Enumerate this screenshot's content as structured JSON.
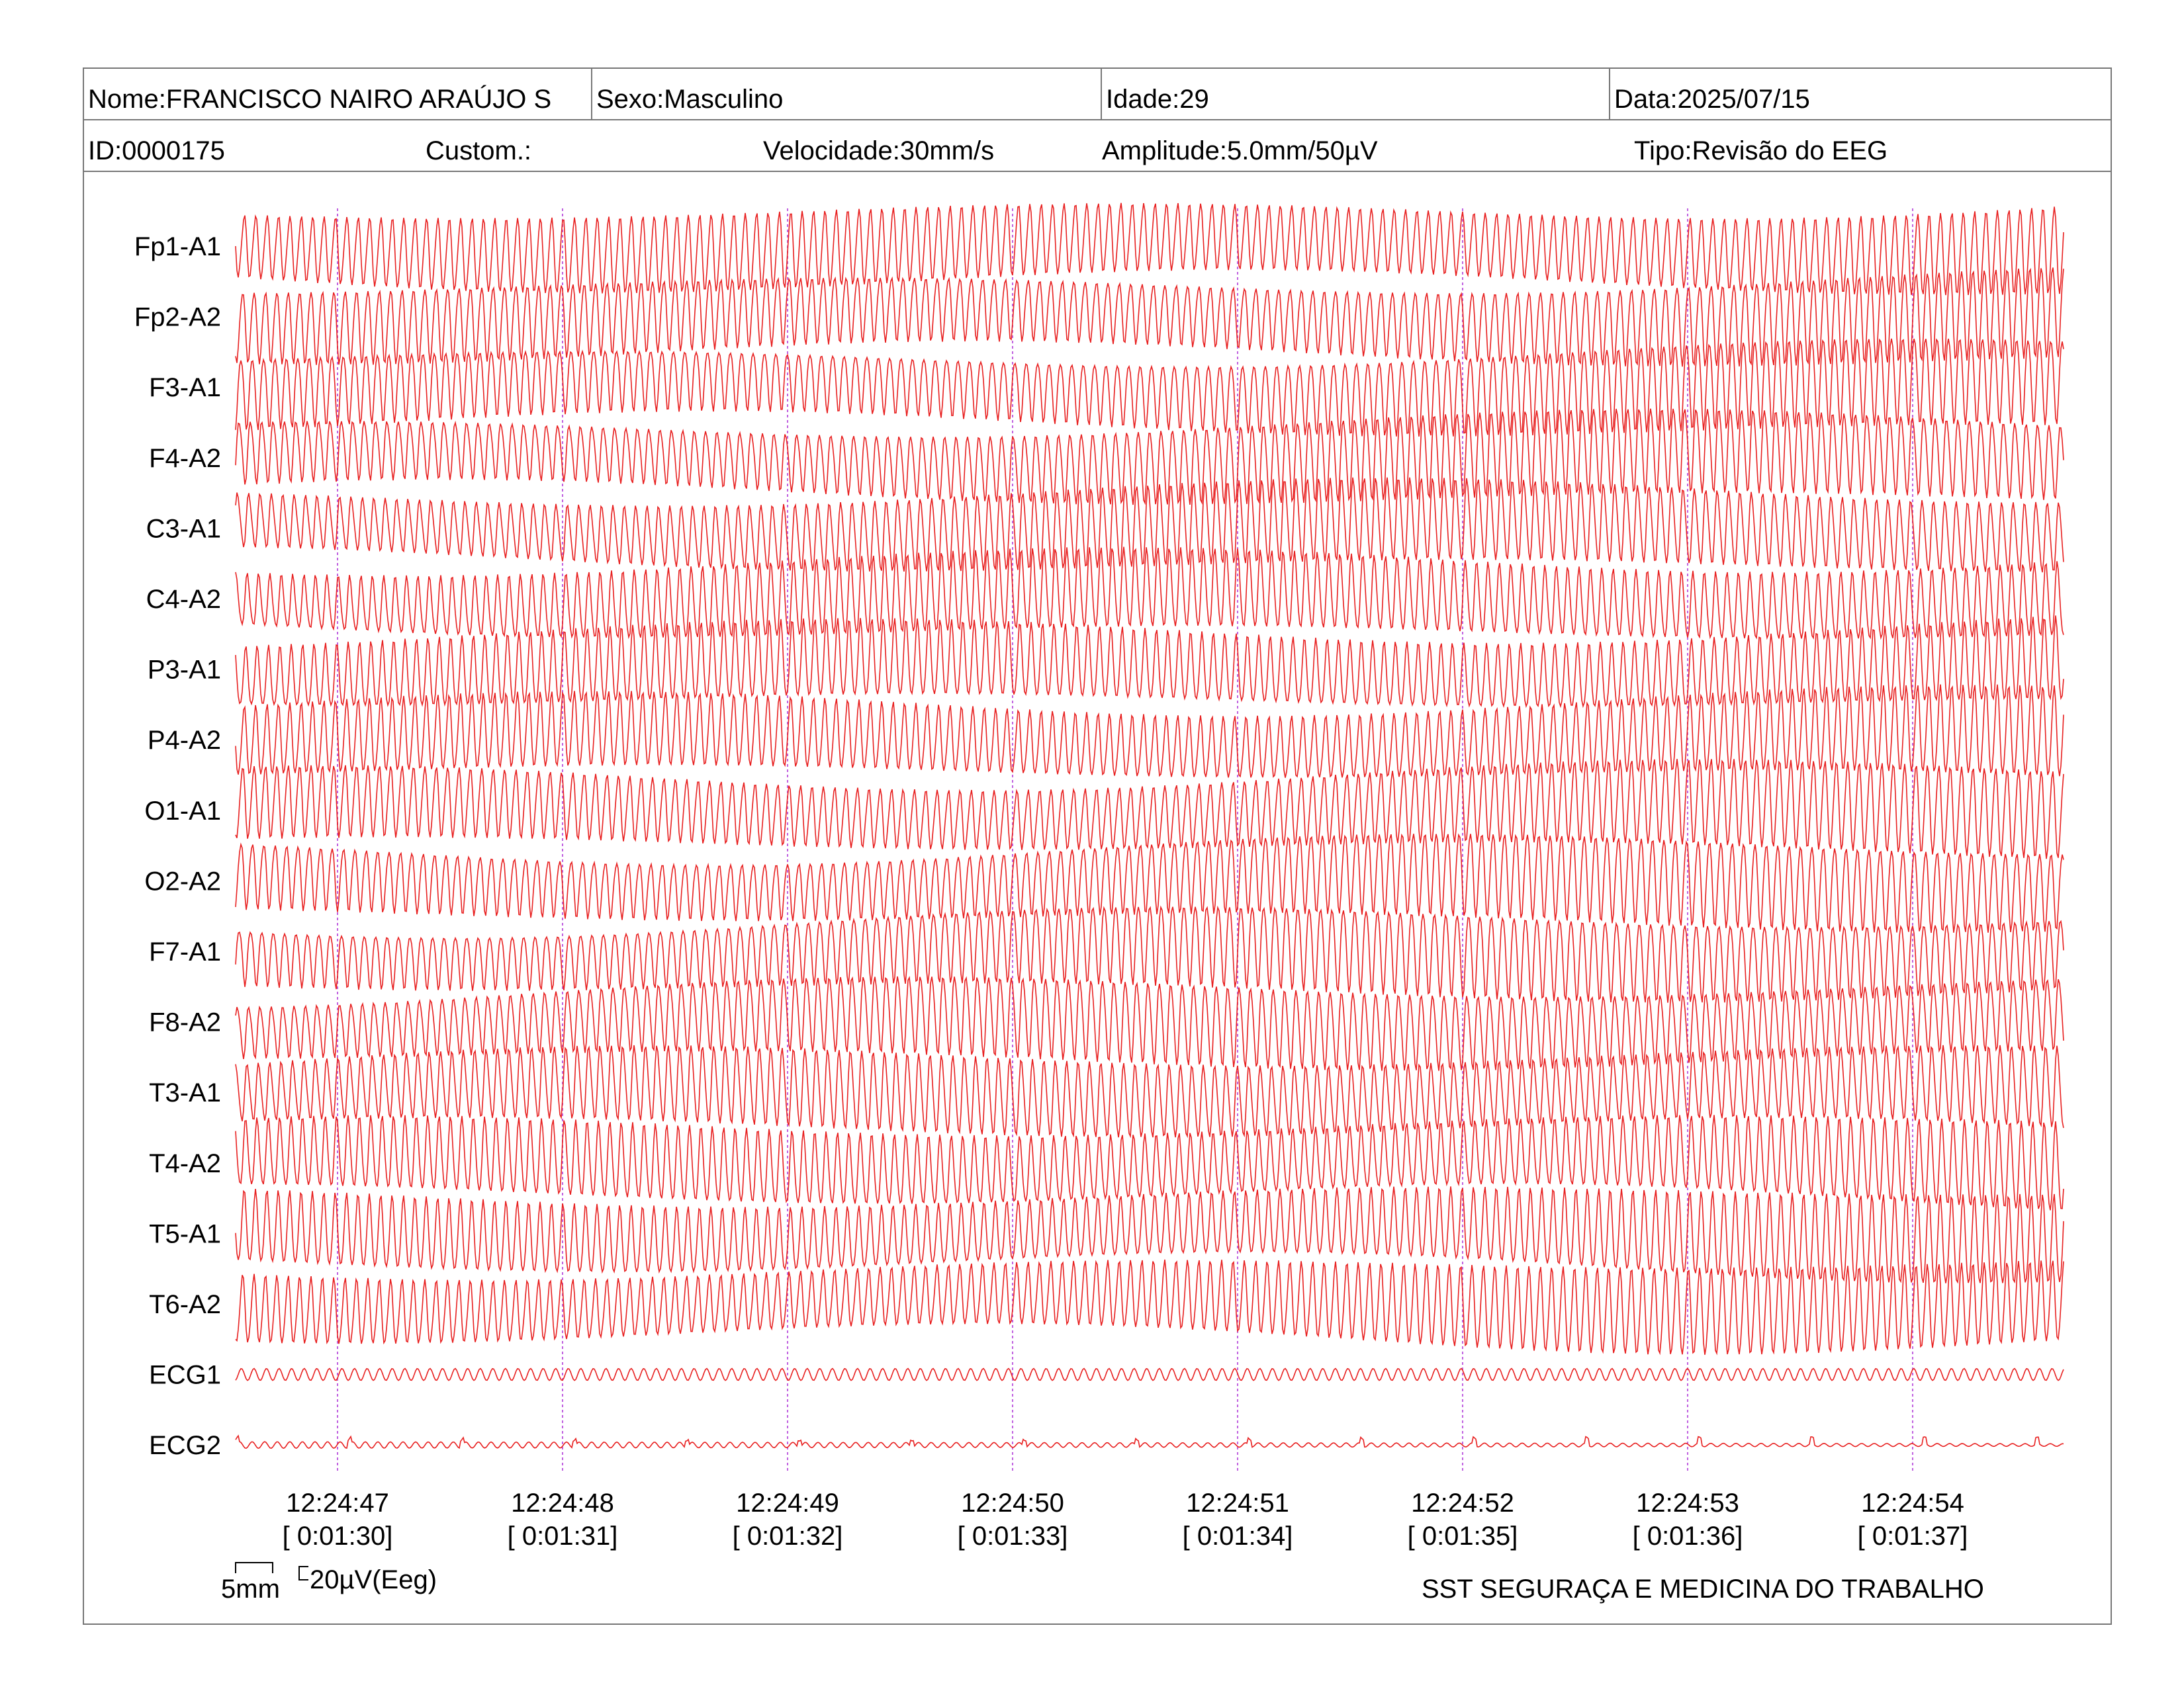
{
  "header": {
    "name": "Nome:FRANCISCO NAIRO ARAÚJO S",
    "sex": "Sexo:Masculino",
    "age": "Idade:29",
    "date": "Data:2025/07/15",
    "id": "ID:0000175",
    "custom": "Custom.:",
    "speed": "Velocidade:30mm/s",
    "amplitude": "Amplitude:5.0mm/50µV",
    "type": "Tipo:Revisão do EEG"
  },
  "chart_data": {
    "type": "line",
    "channels": [
      "Fp1-A1",
      "Fp2-A2",
      "F3-A1",
      "F4-A2",
      "C3-A1",
      "C4-A2",
      "P3-A1",
      "P4-A2",
      "O1-A1",
      "O2-A2",
      "F7-A1",
      "F8-A2",
      "T3-A1",
      "T4-A2",
      "T5-A1",
      "T6-A2",
      "ECG1",
      "ECG2"
    ],
    "time_ticks": [
      {
        "clock": "12:24:47",
        "elapsed": "[ 0:01:30]"
      },
      {
        "clock": "12:24:48",
        "elapsed": "[ 0:01:31]"
      },
      {
        "clock": "12:24:49",
        "elapsed": "[ 0:01:32]"
      },
      {
        "clock": "12:24:50",
        "elapsed": "[ 0:01:33]"
      },
      {
        "clock": "12:24:51",
        "elapsed": "[ 0:01:34]"
      },
      {
        "clock": "12:24:52",
        "elapsed": "[ 0:01:35]"
      },
      {
        "clock": "12:24:53",
        "elapsed": "[ 0:01:36]"
      },
      {
        "clock": "12:24:54",
        "elapsed": "[ 0:01:37]"
      }
    ],
    "trace_color": "#e82020",
    "marker_color": "#c060e0",
    "scale": {
      "time": "5mm",
      "amplitude": "20µV(Eeg)"
    }
  },
  "footer": {
    "organization": "SST SEGURAÇA E MEDICINA DO TRABALHO"
  }
}
